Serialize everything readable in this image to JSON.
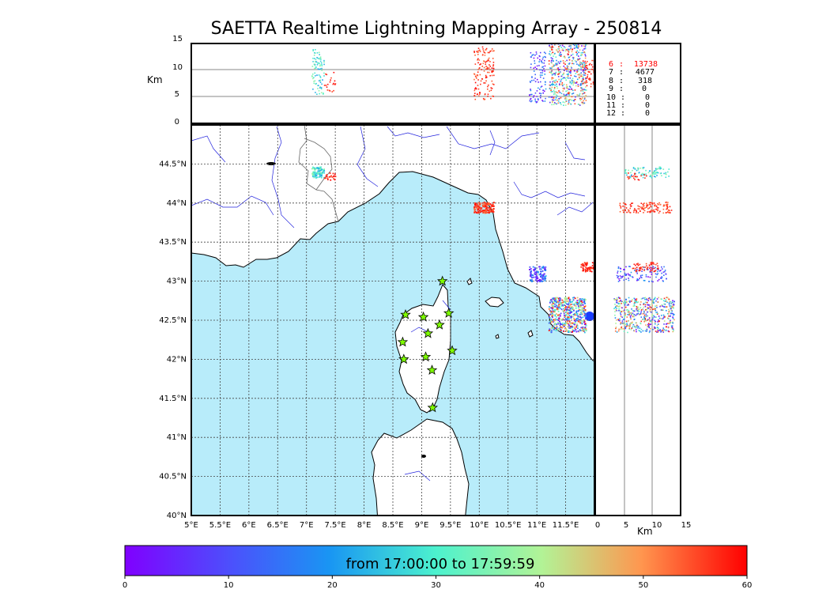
{
  "title": "SAETTA Realtime Lightning Mapping Array - 250814",
  "altitude_axis": {
    "label": "Km",
    "ticks": [
      "0",
      "5",
      "10",
      "15"
    ],
    "range": [
      0,
      15
    ]
  },
  "side_axis": {
    "label": "Km",
    "ticks": [
      "0",
      "5",
      "10",
      "15"
    ],
    "range": [
      0,
      15
    ]
  },
  "map": {
    "lon_range": [
      5.0,
      12.0
    ],
    "lat_range": [
      40.0,
      45.0
    ],
    "lon_ticks": [
      "5°E",
      "5.5°E",
      "6°E",
      "6.5°E",
      "7°E",
      "7.5°E",
      "8°E",
      "8.5°E",
      "9°E",
      "9.5°E",
      "10°E",
      "10.5°E",
      "11°E",
      "11.5°E"
    ],
    "lat_ticks": [
      "40°N",
      "40.5°N",
      "41°N",
      "41.5°N",
      "42°N",
      "42.5°N",
      "43°N",
      "43.5°N",
      "44°N",
      "44.5°N"
    ],
    "sea_color": "#b8ecfa",
    "land_color": "#ffffff",
    "river_color": "#2222dd",
    "station_color": "#7fff00",
    "stations": [
      [
        9.36,
        43.0
      ],
      [
        8.72,
        42.57
      ],
      [
        9.03,
        42.54
      ],
      [
        9.47,
        42.59
      ],
      [
        9.11,
        42.33
      ],
      [
        9.31,
        42.44
      ],
      [
        8.67,
        42.22
      ],
      [
        9.53,
        42.11
      ],
      [
        8.69,
        42.0
      ],
      [
        9.07,
        42.03
      ],
      [
        9.18,
        41.86
      ],
      [
        9.19,
        41.38
      ]
    ]
  },
  "legend": {
    "rows": [
      {
        "stations": "6",
        "count": "13738",
        "color": "#ff0000"
      },
      {
        "stations": "7",
        "count": "4677",
        "color": "#000000"
      },
      {
        "stations": "8",
        "count": "318",
        "color": "#000000"
      },
      {
        "stations": "9",
        "count": "0",
        "color": "#000000"
      },
      {
        "stations": "10",
        "count": "0",
        "color": "#000000"
      },
      {
        "stations": "11",
        "count": "0",
        "color": "#000000"
      },
      {
        "stations": "12",
        "count": "0",
        "color": "#000000"
      }
    ]
  },
  "colorbar": {
    "label": "from 17:00:00 to 17:59:59",
    "ticks": [
      "0",
      "10",
      "20",
      "30",
      "40",
      "50",
      "60"
    ],
    "range": [
      0,
      60
    ],
    "colormap": "rainbow"
  },
  "clusters": [
    {
      "name": "alps-cluster",
      "lon": [
        7.08,
        7.3
      ],
      "lat": [
        44.33,
        44.47
      ],
      "alt": [
        5.5,
        14.0
      ],
      "t": [
        20,
        38
      ],
      "n": 90
    },
    {
      "name": "alps-red-cluster",
      "lon": [
        7.3,
        7.5
      ],
      "lat": [
        44.3,
        44.4
      ],
      "alt": [
        6.0,
        10.0
      ],
      "t": [
        55,
        60
      ],
      "n": 20
    },
    {
      "name": "ligurian-cluster",
      "lon": [
        9.9,
        10.25
      ],
      "lat": [
        43.88,
        44.02
      ],
      "alt": [
        4.5,
        14.5
      ],
      "t": [
        52,
        60
      ],
      "n": 140
    },
    {
      "name": "tuscany-coast-cluster",
      "lon": [
        10.85,
        11.15
      ],
      "lat": [
        43.0,
        43.2
      ],
      "alt": [
        4.0,
        13.5
      ],
      "t": [
        0,
        22
      ],
      "n": 110
    },
    {
      "name": "tuscany-east-cluster",
      "lon": [
        11.75,
        12.0
      ],
      "lat": [
        43.13,
        43.25
      ],
      "alt": [
        7.0,
        12.0
      ],
      "t": [
        55,
        60
      ],
      "n": 60
    },
    {
      "name": "grosseto-cluster",
      "lon": [
        11.2,
        11.85
      ],
      "lat": [
        42.35,
        42.8
      ],
      "alt": [
        3.5,
        15.0
      ],
      "t": [
        0,
        60
      ],
      "n": 520
    }
  ]
}
